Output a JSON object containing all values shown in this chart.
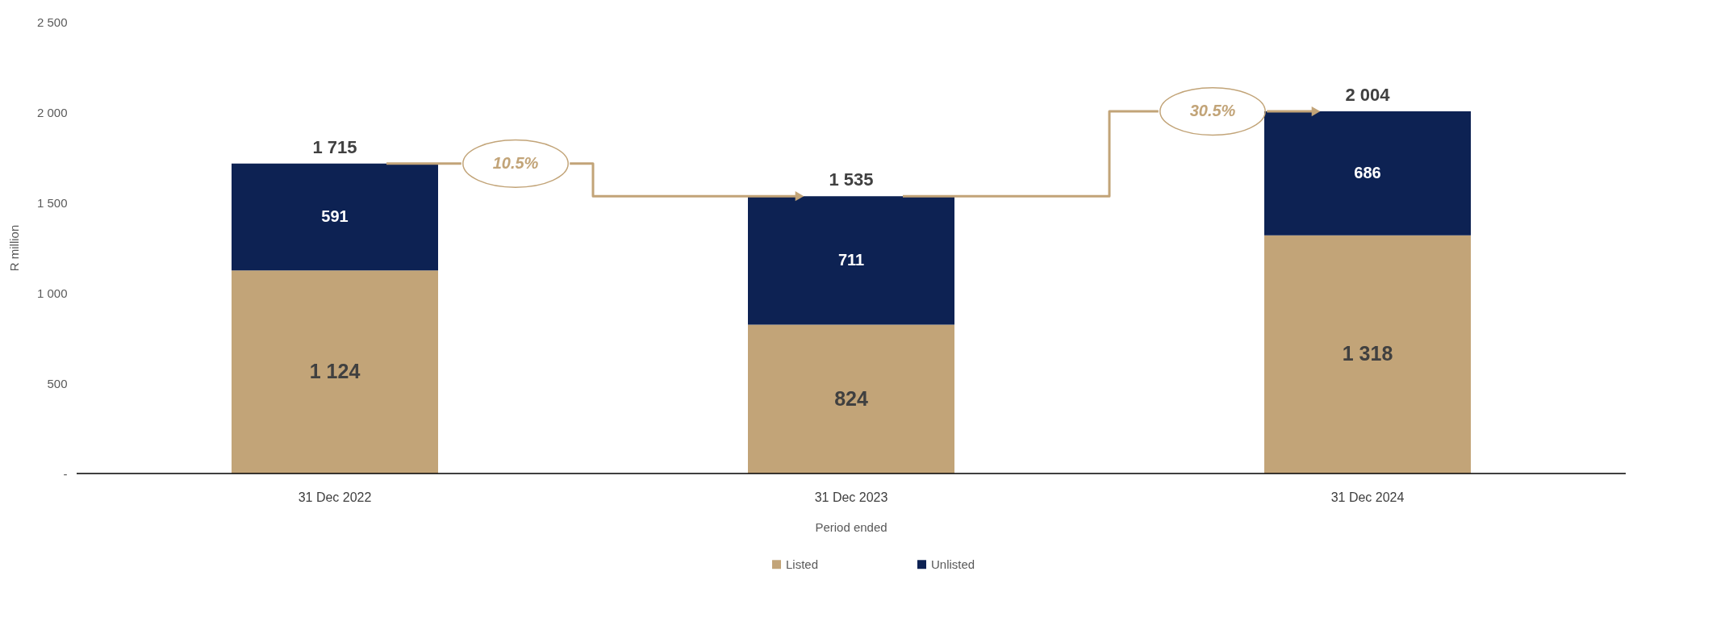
{
  "chart_data": {
    "type": "bar",
    "stacked": true,
    "xlabel": "Period ended",
    "ylabel": "R million",
    "categories": [
      "31 Dec 2022",
      "31 Dec 2023",
      "31 Dec 2024"
    ],
    "series": [
      {
        "name": "Listed",
        "color": "#c2a478",
        "values": [
          1124,
          824,
          1318
        ]
      },
      {
        "name": "Unlisted",
        "color": "#0d2253",
        "values": [
          591,
          711,
          686
        ]
      }
    ],
    "ylim": [
      0,
      2500
    ],
    "yticks": [
      {
        "value": 0,
        "label": "-"
      },
      500,
      {
        "value": 1000,
        "label": "1 000"
      },
      {
        "value": 1500,
        "label": "1 500"
      },
      {
        "value": 2000,
        "label": "2 000"
      },
      {
        "value": 2500,
        "label": "2 500"
      }
    ],
    "value_labels": [
      [
        "1 124",
        "824",
        "1 318"
      ],
      [
        "591",
        "711",
        "686"
      ]
    ],
    "totals": [
      "1 715",
      "1 535",
      "2 004"
    ],
    "annotations": [
      "10.5%",
      "30.5%"
    ],
    "grid": false,
    "legend": "bottom"
  }
}
